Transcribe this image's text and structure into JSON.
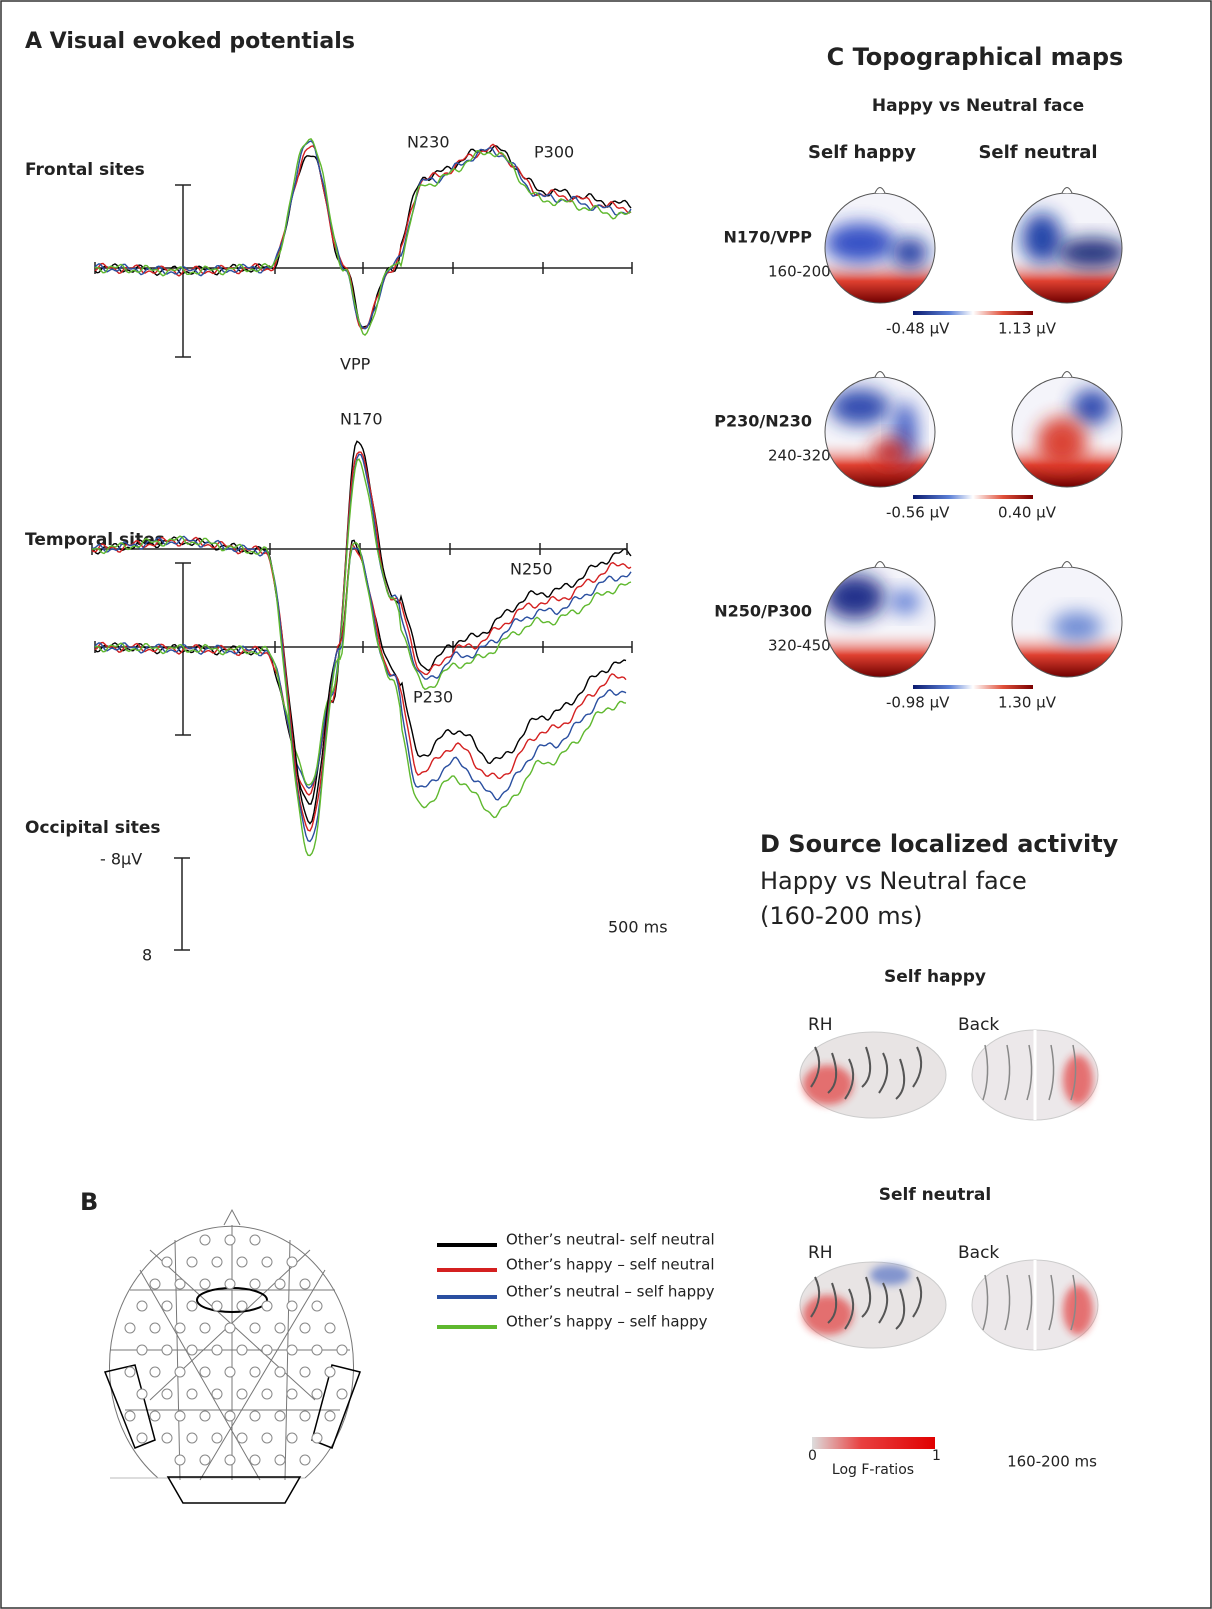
{
  "panel_a": {
    "title": "A Visual evoked potentials",
    "plots": [
      {
        "label": "Frontal sites",
        "annotations": [
          "N230",
          "P300",
          "VPP"
        ]
      },
      {
        "label": "Temporal sites",
        "annotations": [
          "N170",
          "N250",
          "P230"
        ]
      },
      {
        "label": "Occipital sites",
        "annotations": []
      }
    ],
    "scale": {
      "amplitude_top": "- 8µV",
      "amplitude_bottom": "8",
      "time": "500 ms"
    }
  },
  "panel_b": {
    "label": "B",
    "legend": [
      {
        "name": "Other’s neutral- self neutral",
        "color": "#000000"
      },
      {
        "name": "Other’s happy – self neutral",
        "color": "#d42020"
      },
      {
        "name": "Other’s neutral – self happy",
        "color": "#2a4fa0"
      },
      {
        "name": "Other’s happy – self happy",
        "color": "#5fb82e"
      }
    ]
  },
  "panel_c": {
    "title": "C Topographical maps",
    "subtitle": "Happy  vs Neutral face",
    "columns": [
      "Self happy",
      "Self neutral"
    ],
    "rows": [
      {
        "component": "N170/VPP",
        "window": "160-200 ms",
        "min": "-0.48 µV",
        "max": "1.13 µV"
      },
      {
        "component": "P230/N230",
        "window": "240-320 ms",
        "min": "-0.56 µV",
        "max": "0.40 µV"
      },
      {
        "component": "N250/P300",
        "window": "320-450 ms",
        "min": "-0.98 µV",
        "max": "1.30 µV"
      }
    ]
  },
  "panel_d": {
    "title": "D Source localized activity",
    "subtitle": "Happy  vs Neutral face",
    "window": "(160-200 ms)",
    "rows": [
      {
        "label": "Self happy",
        "views": [
          "RH",
          "Back"
        ]
      },
      {
        "label": "Self neutral",
        "views": [
          "RH",
          "Back"
        ]
      }
    ],
    "colorbar": {
      "min": "0",
      "max": "1",
      "label": "Log F-ratios"
    },
    "time": "160-200 ms"
  }
}
